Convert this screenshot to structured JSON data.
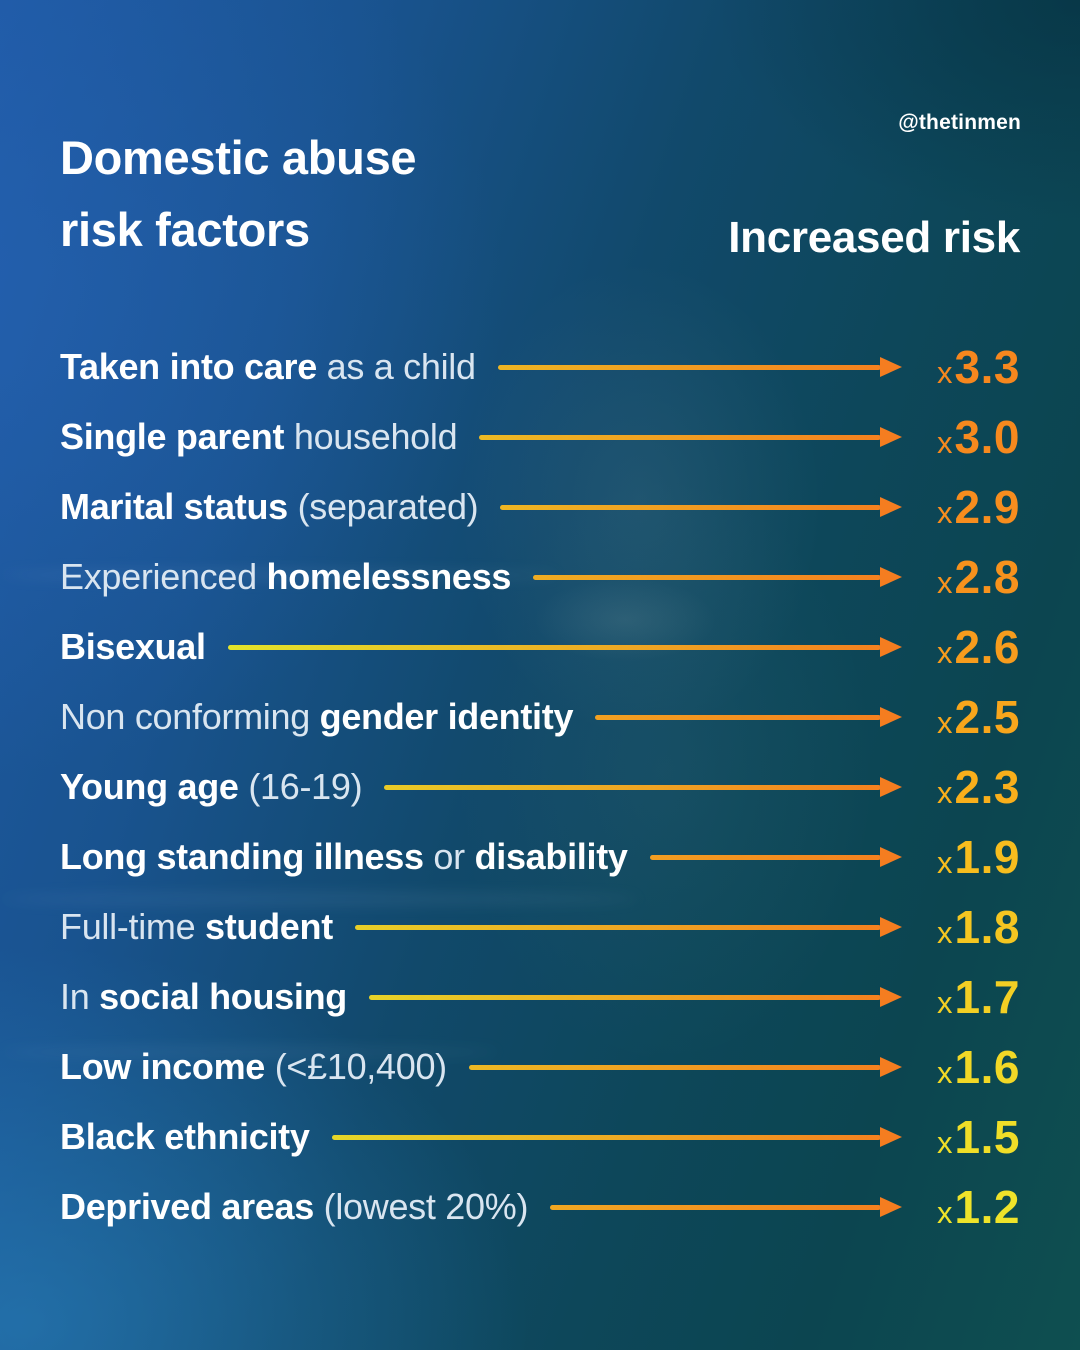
{
  "handle": "@thetinmen",
  "header": {
    "title_line1": "Domestic abuse",
    "title_line2": "risk factors",
    "right_label": "Increased risk"
  },
  "palette": {
    "background_blue": "#1f5aa5",
    "background_teal": "#0d475a",
    "background_green_teal": "#0e4f50",
    "text_white": "#ffffff",
    "text_dim": "#d9e5f0",
    "arrow_orange": "#f57d20",
    "arrow_yellow": "#e3e42b"
  },
  "rows": [
    {
      "label_parts": [
        {
          "text": "Taken into care",
          "bold": true
        },
        {
          "text": " as a child",
          "bold": false
        }
      ],
      "value_prefix": "x",
      "value": "3.3",
      "value_color": "#f6871e",
      "arrow_from": "#eeb523",
      "arrow_to": "#f5811f",
      "arrow_head": "#f57d20"
    },
    {
      "label_parts": [
        {
          "text": "Single parent",
          "bold": true
        },
        {
          "text": " household",
          "bold": false
        }
      ],
      "value_prefix": "x",
      "value": "3.0",
      "value_color": "#f6891e",
      "arrow_from": "#edba24",
      "arrow_to": "#f5811f",
      "arrow_head": "#f57d20"
    },
    {
      "label_parts": [
        {
          "text": "Marital status",
          "bold": true
        },
        {
          "text": " (separated)",
          "bold": false
        }
      ],
      "value_prefix": "x",
      "value": "2.9",
      "value_color": "#f78d1e",
      "arrow_from": "#eeb623",
      "arrow_to": "#f5811f",
      "arrow_head": "#f57d20"
    },
    {
      "label_parts": [
        {
          "text": "Experienced ",
          "bold": false
        },
        {
          "text": "homelessness",
          "bold": true
        }
      ],
      "value_prefix": "x",
      "value": "2.8",
      "value_color": "#f7921d",
      "arrow_from": "#f0ad22",
      "arrow_to": "#f5811f",
      "arrow_head": "#f57d20"
    },
    {
      "label_parts": [
        {
          "text": "Bisexual",
          "bold": true
        }
      ],
      "value_prefix": "x",
      "value": "2.6",
      "value_color": "#f79c1d",
      "arrow_from": "#e3e42b",
      "arrow_to": "#f5811f",
      "arrow_head": "#f57d20"
    },
    {
      "label_parts": [
        {
          "text": "Non conforming ",
          "bold": false
        },
        {
          "text": "gender identity",
          "bold": true
        }
      ],
      "value_prefix": "x",
      "value": "2.5",
      "value_color": "#f8a61c",
      "arrow_from": "#f2a121",
      "arrow_to": "#f5811f",
      "arrow_head": "#f57d20"
    },
    {
      "label_parts": [
        {
          "text": "Young age",
          "bold": true
        },
        {
          "text": " (16-19)",
          "bold": false
        }
      ],
      "value_prefix": "x",
      "value": "2.3",
      "value_color": "#f9af1b",
      "arrow_from": "#e9cb27",
      "arrow_to": "#f5811f",
      "arrow_head": "#f57d20"
    },
    {
      "label_parts": [
        {
          "text": "Long standing illness",
          "bold": true
        },
        {
          "text": " or ",
          "bold": false
        },
        {
          "text": "disability",
          "bold": true
        }
      ],
      "value_prefix": "x",
      "value": "1.9",
      "value_color": "#f7bd1e",
      "arrow_from": "#f39e21",
      "arrow_to": "#f5811f",
      "arrow_head": "#f57d20"
    },
    {
      "label_parts": [
        {
          "text": "Full-time ",
          "bold": false
        },
        {
          "text": "student",
          "bold": true
        }
      ],
      "value_prefix": "x",
      "value": "1.8",
      "value_color": "#f5c621",
      "arrow_from": "#e8cf28",
      "arrow_to": "#f5811f",
      "arrow_head": "#f57d20"
    },
    {
      "label_parts": [
        {
          "text": "In ",
          "bold": false
        },
        {
          "text": "social housing",
          "bold": true
        }
      ],
      "value_prefix": "x",
      "value": "1.7",
      "value_color": "#f3cf24",
      "arrow_from": "#e7d328",
      "arrow_to": "#f5811f",
      "arrow_head": "#f57d20"
    },
    {
      "label_parts": [
        {
          "text": "Low income",
          "bold": true
        },
        {
          "text": " (<£10,400)",
          "bold": false
        }
      ],
      "value_prefix": "x",
      "value": "1.6",
      "value_color": "#f2d826",
      "arrow_from": "#edb924",
      "arrow_to": "#f5811f",
      "arrow_head": "#f57d20"
    },
    {
      "label_parts": [
        {
          "text": "Black ethnicity",
          "bold": true
        }
      ],
      "value_prefix": "x",
      "value": "1.5",
      "value_color": "#f0de28",
      "arrow_from": "#e6d729",
      "arrow_to": "#f5811f",
      "arrow_head": "#f57d20"
    },
    {
      "label_parts": [
        {
          "text": "Deprived areas",
          "bold": true
        },
        {
          "text": " (lowest 20%)",
          "bold": false
        }
      ],
      "value_prefix": "x",
      "value": "1.2",
      "value_color": "#efe32a",
      "arrow_from": "#f1a822",
      "arrow_to": "#f5811f",
      "arrow_head": "#f57d20"
    }
  ],
  "chart_data": {
    "type": "bar",
    "orientation": "horizontal",
    "title": "Domestic abuse risk factors",
    "value_label": "Increased risk",
    "value_format": "x{value}",
    "categories": [
      "Taken into care as a child",
      "Single parent household",
      "Marital status (separated)",
      "Experienced homelessness",
      "Bisexual",
      "Non conforming gender identity",
      "Young age (16-19)",
      "Long standing illness or disability",
      "Full-time student",
      "In social housing",
      "Low income (<£10,400)",
      "Black ethnicity",
      "Deprived areas (lowest 20%)"
    ],
    "values": [
      3.3,
      3.0,
      2.9,
      2.8,
      2.6,
      2.5,
      2.3,
      1.9,
      1.8,
      1.7,
      1.6,
      1.5,
      1.2
    ],
    "legend": false,
    "grid": false,
    "annotation_source": "@thetinmen"
  }
}
